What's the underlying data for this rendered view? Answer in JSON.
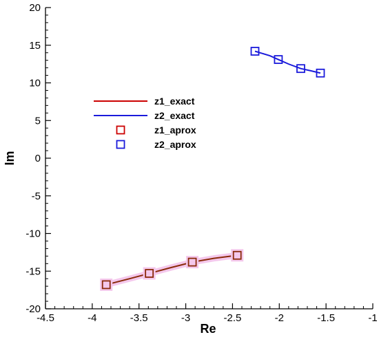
{
  "chart_data": {
    "type": "line",
    "xlabel": "Re",
    "ylabel": "Im",
    "xlim": [
      -4.5,
      -1
    ],
    "ylim": [
      -20,
      20
    ],
    "x_ticks": [
      "-4.5",
      "-4",
      "-3.5",
      "-3",
      "-2.5",
      "-2",
      "-1.5",
      "-1"
    ],
    "y_ticks": [
      "20",
      "15",
      "10",
      "5",
      "0",
      "-5",
      "-10",
      "-15",
      "-20"
    ],
    "grid": false,
    "legend_position": "left",
    "series": [
      {
        "name": "z1_exact",
        "style": "line",
        "color": "#cc0000",
        "x": [
          -3.85,
          -3.6,
          -3.39,
          -3.15,
          -2.93,
          -2.7,
          -2.45
        ],
        "y": [
          -16.8,
          -16.0,
          -15.3,
          -14.5,
          -13.8,
          -13.3,
          -12.9
        ]
      },
      {
        "name": "z2_exact",
        "style": "line",
        "color": "#1a1adb",
        "x": [
          -2.26,
          -2.1,
          -2.01,
          -1.9,
          -1.77,
          -1.66,
          -1.56
        ],
        "y": [
          14.2,
          13.6,
          13.1,
          12.5,
          11.9,
          11.6,
          11.3
        ]
      },
      {
        "name": "z1_aprox",
        "style": "marker",
        "marker": "square",
        "color": "#cc0000",
        "x": [
          -3.85,
          -3.39,
          -2.93,
          -2.45
        ],
        "y": [
          -16.8,
          -15.3,
          -13.8,
          -12.9
        ]
      },
      {
        "name": "z2_aprox",
        "style": "marker",
        "marker": "square",
        "color": "#1a1adb",
        "x": [
          -2.26,
          -2.01,
          -1.77,
          -1.56
        ],
        "y": [
          14.2,
          13.1,
          11.9,
          11.3
        ]
      }
    ],
    "colors": {
      "z1_series": "#cc0000",
      "z1_overlap": "#8b2a0a",
      "z1_highlight": "#f4c8ec",
      "z2_series": "#1a1adb"
    }
  }
}
